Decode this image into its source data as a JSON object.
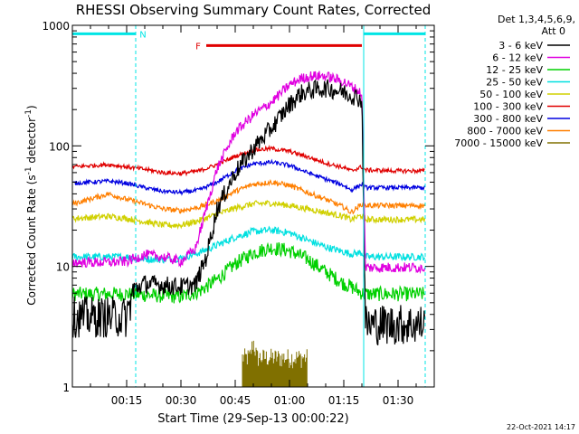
{
  "chart_data": {
    "type": "line",
    "title": "RHESSI Observing Summary Count Rates, Corrected",
    "xlabel": "Start Time (29-Sep-13 00:00:22)",
    "ylabel_main": "Corrected Count Rate (s",
    "ylabel_sup1": "-1",
    "ylabel_mid": " detector",
    "ylabel_sup2": "-1",
    "ylabel_end": ")",
    "y_scale": "log",
    "ylim": [
      1,
      1000
    ],
    "xlim_minutes": [
      0,
      100
    ],
    "x_tick_labels": [
      "00:15",
      "00:30",
      "00:45",
      "01:00",
      "01:15",
      "01:30"
    ],
    "x_tick_minutes": [
      15,
      30,
      45,
      60,
      75,
      90
    ],
    "y_tick_labels": [
      "1",
      "10",
      "100",
      "1000"
    ],
    "y_tick_values": [
      1,
      10,
      100,
      1000
    ],
    "legend_header": [
      "Det 1,3,4,5,6,9,",
      "Att 0"
    ],
    "legend_placement": "right",
    "timestamp": "22-Oct-2021 14:17",
    "annotations": {
      "night": {
        "label": "N",
        "color": "#00e5e5",
        "intervals": [
          [
            0,
            17.5
          ],
          [
            80.5,
            97.5
          ]
        ],
        "level": 850
      },
      "flare": {
        "label": "F",
        "color": "#e00000",
        "interval": [
          37,
          80
        ],
        "level": 680
      }
    },
    "boundaries_solid": [
      0,
      80.5
    ],
    "boundaries_dashed": [
      17.5,
      97.5
    ],
    "series": [
      {
        "name": "3 - 6 keV",
        "color": "#000000",
        "x": [
          0,
          15,
          17,
          20,
          25,
          30,
          34,
          37,
          40,
          45,
          50,
          55,
          60,
          63,
          66,
          70,
          75,
          79,
          80,
          81,
          85,
          90,
          97.5
        ],
        "y": [
          3.8,
          3.8,
          6.5,
          7.2,
          7.0,
          6.8,
          7,
          12,
          30,
          60,
          95,
          140,
          220,
          270,
          290,
          300,
          280,
          250,
          240,
          3.3,
          3.3,
          3.3,
          3.3
        ]
      },
      {
        "name": "6 - 12 keV",
        "color": "#e000e0",
        "x": [
          0,
          10,
          15,
          20,
          25,
          30,
          34,
          37,
          40,
          45,
          50,
          55,
          60,
          63,
          66,
          70,
          75,
          79,
          80,
          81,
          85,
          90,
          97.5
        ],
        "y": [
          10.8,
          10.8,
          11,
          12.5,
          12,
          11,
          14,
          30,
          65,
          130,
          180,
          230,
          320,
          360,
          380,
          380,
          340,
          285,
          270,
          9.8,
          9.8,
          9.8,
          9.8
        ]
      },
      {
        "name": "12 - 25 keV",
        "color": "#00d000",
        "x": [
          0,
          15,
          20,
          25,
          30,
          35,
          40,
          45,
          50,
          55,
          60,
          65,
          70,
          75,
          77,
          80,
          81,
          90,
          97.5
        ],
        "y": [
          5.9,
          5.9,
          5.8,
          5.7,
          5.6,
          6.2,
          7.8,
          10.5,
          13,
          14.3,
          13.5,
          11.5,
          9.0,
          7.2,
          6.8,
          6.0,
          5.9,
          5.9,
          5.9
        ]
      },
      {
        "name": "25 - 50 keV",
        "color": "#00e0e0",
        "x": [
          0,
          15,
          20,
          25,
          30,
          35,
          40,
          45,
          50,
          55,
          60,
          65,
          70,
          75,
          77,
          80,
          81,
          90,
          97.5
        ],
        "y": [
          12,
          12,
          11.5,
          11.4,
          11.7,
          13,
          15,
          17.5,
          19.5,
          20,
          19,
          16.5,
          14.5,
          13.2,
          12.7,
          13,
          12,
          12,
          12
        ]
      },
      {
        "name": "50 - 100 keV",
        "color": "#d0d000",
        "x": [
          0,
          10,
          15,
          20,
          25,
          30,
          35,
          40,
          45,
          50,
          55,
          60,
          65,
          70,
          75,
          77,
          80,
          81,
          90,
          97.5
        ],
        "y": [
          25,
          26,
          25,
          23.5,
          22,
          22,
          24,
          27,
          30.5,
          33,
          33.5,
          32,
          30,
          28,
          26,
          24.5,
          26.5,
          24.5,
          24.5,
          24.5
        ]
      },
      {
        "name": "100 - 300 keV",
        "color": "#e00000",
        "x": [
          0,
          10,
          15,
          20,
          25,
          30,
          35,
          40,
          45,
          50,
          55,
          60,
          65,
          70,
          75,
          77,
          80,
          81,
          90,
          97.5
        ],
        "y": [
          67,
          70,
          67,
          64,
          60,
          59,
          62,
          70,
          82,
          92,
          95,
          90,
          81,
          72,
          66,
          62,
          67,
          63,
          62,
          62
        ]
      },
      {
        "name": "300 - 800 keV",
        "color": "#0000e0",
        "x": [
          0,
          10,
          15,
          20,
          25,
          30,
          35,
          40,
          45,
          50,
          55,
          60,
          65,
          70,
          75,
          77,
          80,
          81,
          90,
          97.5
        ],
        "y": [
          49,
          51,
          49,
          45,
          42,
          41,
          43,
          50,
          62,
          71,
          73,
          69,
          60,
          53,
          47,
          43,
          48,
          45,
          45,
          45
        ]
      },
      {
        "name": "800 - 7000 keV",
        "color": "#ff7f00",
        "x": [
          0,
          10,
          15,
          20,
          25,
          30,
          35,
          40,
          45,
          50,
          55,
          60,
          65,
          70,
          75,
          77,
          80,
          81,
          90,
          97.5
        ],
        "y": [
          33,
          40,
          36,
          33,
          30,
          29,
          31,
          35,
          42,
          48,
          50,
          47,
          41,
          36,
          31,
          28,
          33,
          32,
          32,
          32
        ]
      },
      {
        "name": "7000 - 15000 keV",
        "color": "#807000",
        "x": [
          47,
          48,
          49,
          50,
          51,
          52,
          53,
          54,
          55,
          56,
          57,
          58,
          59,
          60,
          61,
          62,
          63,
          64,
          65
        ],
        "y": [
          1.9,
          1.9,
          1.9,
          2.6,
          1.9,
          1.9,
          1.9,
          1.9,
          1.9,
          1.9,
          1.9,
          1.9,
          1.9,
          1.9,
          1.9,
          1.9,
          1.9,
          1.9,
          1.9
        ]
      }
    ]
  }
}
